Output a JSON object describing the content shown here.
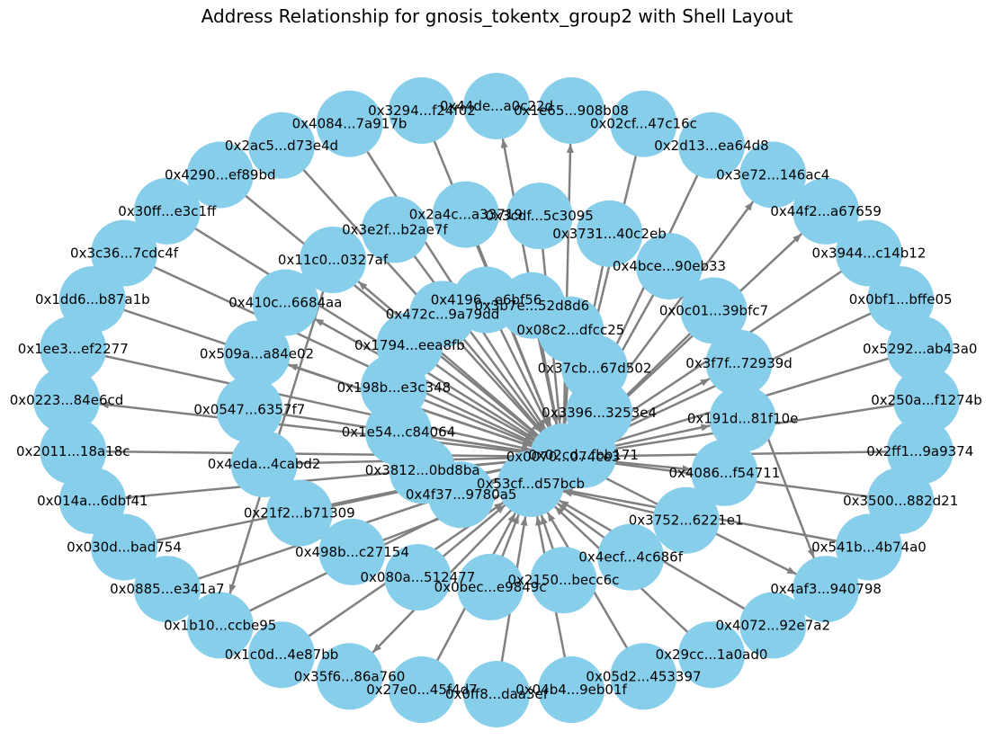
{
  "title": "Address Relationship for gnosis_tokentx_group2 with Shell Layout",
  "colors": {
    "node": "#87ceeb",
    "edge": "#808080",
    "label": "#000000",
    "background": "#ffffff"
  },
  "nodes": {
    "outer": [
      "0x44de...a0c22d",
      "0x1e65...908b08",
      "0x02cf...47c16c",
      "0x2d13...ea64d8",
      "0x3e72...146ac4",
      "0x44f2...a67659",
      "0x3944...c14b12",
      "0x0bf1...bffe05",
      "0x5292...ab43a0",
      "0x250a...f1274b",
      "0x2ff1...9a9374",
      "0x3500...882d21",
      "0x541b...4b74a0",
      "0x4af3...940798",
      "0x4072...92e7a2",
      "0x29cc...1a0ad0",
      "0x05d2...453397",
      "0x04b4...9eb01f",
      "0x0ff8...daa3ef",
      "0x27e0...45f4d7",
      "0x35f6...86a760",
      "0x1c0d...4e87bb",
      "0x1b10...ccbe95",
      "0x0885...e341a7",
      "0x030d...bad754",
      "0x014a...6dbf41",
      "0x2011...18a18c",
      "0x0223...84e6cd",
      "0x1ee3...ef2277",
      "0x1dd6...b87a1b",
      "0x3c36...7cdc4f",
      "0x30ff...e3c1ff",
      "0x4290...ef89bd",
      "0x2ac5...d73e4d",
      "0x4084...7a917b",
      "0x3294...f24f02"
    ],
    "middle": [
      "0x3cdf...5c3095",
      "0x3731...40c2eb",
      "0x4bce...90eb33",
      "0x0c01...39bfc7",
      "0x3f7f...72939d",
      "0x191d...81f10e",
      "0x4086...f54711",
      "0x3752...6221e1",
      "0x4ecf...4c686f",
      "0x2150...becc6c",
      "0x0bec...e9849c",
      "0x080a...512477",
      "0x498b...c27154",
      "0x21f2...b71309",
      "0x4eda...4cabd2",
      "0x0547...6357f7",
      "0x509a...a84e02",
      "0x410c...6684aa",
      "0x11c0...0327af",
      "0x3e2f...b2ae7f",
      "0x2a4c...a33719"
    ],
    "inner": [
      "0x3b7e...52d8d6",
      "0x08c2...dfcc25",
      "0x37cb...67d502",
      "0x3396...3253e4",
      "0x02cd...fbb171",
      "0x0070...074ce3",
      "0x53cf...d57bcb",
      "0x4f37...9780a5",
      "0x3812...0bd8ba",
      "0x1e54...c84064",
      "0x198b...e3c348",
      "0x1794...eea8fb",
      "0x472c...9a79dd",
      "0x4196...e6bf56"
    ]
  },
  "edges": [
    [
      "0x0070...074ce3",
      "0x53cf...d57bcb"
    ],
    [
      "0x53cf...d57bcb",
      "0x0070...074ce3"
    ],
    [
      "0x3294...f24f02",
      "0x0070...074ce3"
    ],
    [
      "0x4084...7a917b",
      "0x0070...074ce3"
    ],
    [
      "0x2ac5...d73e4d",
      "0x0070...074ce3"
    ],
    [
      "0x4290...ef89bd",
      "0x0070...074ce3"
    ],
    [
      "0x30ff...e3c1ff",
      "0x0070...074ce3"
    ],
    [
      "0x3c36...7cdc4f",
      "0x0070...074ce3"
    ],
    [
      "0x1dd6...b87a1b",
      "0x0070...074ce3"
    ],
    [
      "0x1ee3...ef2277",
      "0x0070...074ce3"
    ],
    [
      "0x2011...18a18c",
      "0x0070...074ce3"
    ],
    [
      "0x014a...6dbf41",
      "0x0070...074ce3"
    ],
    [
      "0x030d...bad754",
      "0x0070...074ce3"
    ],
    [
      "0x0885...e341a7",
      "0x0070...074ce3"
    ],
    [
      "0x1b10...ccbe95",
      "0x0070...074ce3"
    ],
    [
      "0x1c0d...4e87bb",
      "0x53cf...d57bcb"
    ],
    [
      "0x27e0...45f4d7",
      "0x53cf...d57bcb"
    ],
    [
      "0x0ff8...daa3ef",
      "0x53cf...d57bcb"
    ],
    [
      "0x04b4...9eb01f",
      "0x53cf...d57bcb"
    ],
    [
      "0x05d2...453397",
      "0x53cf...d57bcb"
    ],
    [
      "0x29cc...1a0ad0",
      "0x53cf...d57bcb"
    ],
    [
      "0x4072...92e7a2",
      "0x53cf...d57bcb"
    ],
    [
      "0x541b...4b74a0",
      "0x53cf...d57bcb"
    ],
    [
      "0x3500...882d21",
      "0x0070...074ce3"
    ],
    [
      "0x2ff1...9a9374",
      "0x0070...074ce3"
    ],
    [
      "0x250a...f1274b",
      "0x0070...074ce3"
    ],
    [
      "0x5292...ab43a0",
      "0x0070...074ce3"
    ],
    [
      "0x0bf1...bffe05",
      "0x0070...074ce3"
    ],
    [
      "0x3944...c14b12",
      "0x0070...074ce3"
    ],
    [
      "0x02cf...47c16c",
      "0x0070...074ce3"
    ],
    [
      "0x2d13...ea64d8",
      "0x0070...074ce3"
    ],
    [
      "0x0070...074ce3",
      "0x0223...84e6cd"
    ],
    [
      "0x0070...074ce3",
      "0x1e65...908b08"
    ],
    [
      "0x0070...074ce3",
      "0x3e72...146ac4"
    ],
    [
      "0x0070...074ce3",
      "0x44f2...a67659"
    ],
    [
      "0x0070...074ce3",
      "0x35f6...86a760"
    ],
    [
      "0x0070...074ce3",
      "0x4af3...940798"
    ],
    [
      "0x3cdf...5c3095",
      "0x0070...074ce3"
    ],
    [
      "0x3731...40c2eb",
      "0x0070...074ce3"
    ],
    [
      "0x4bce...90eb33",
      "0x0070...074ce3"
    ],
    [
      "0x0c01...39bfc7",
      "0x0070...074ce3"
    ],
    [
      "0x2a4c...a33719",
      "0x0070...074ce3"
    ],
    [
      "0x3e2f...b2ae7f",
      "0x0070...074ce3"
    ],
    [
      "0x4ecf...4c686f",
      "0x53cf...d57bcb"
    ],
    [
      "0x2150...becc6c",
      "0x53cf...d57bcb"
    ],
    [
      "0x0bec...e9849c",
      "0x53cf...d57bcb"
    ],
    [
      "0x080a...512477",
      "0x53cf...d57bcb"
    ],
    [
      "0x498b...c27154",
      "0x53cf...d57bcb"
    ],
    [
      "0x21f2...b71309",
      "0x0070...074ce3"
    ],
    [
      "0x4eda...4cabd2",
      "0x0070...074ce3"
    ],
    [
      "0x0547...6357f7",
      "0x0070...074ce3"
    ],
    [
      "0x3752...6221e1",
      "0x53cf...d57bcb"
    ],
    [
      "0x0070...074ce3",
      "0x410c...6684aa"
    ],
    [
      "0x0070...074ce3",
      "0x509a...a84e02"
    ],
    [
      "0x0070...074ce3",
      "0x11c0...0327af"
    ],
    [
      "0x0070...074ce3",
      "0x3f7f...72939d"
    ],
    [
      "0x0070...074ce3",
      "0x02cd...fbb171"
    ],
    [
      "0x0070...074ce3",
      "0x191d...81f10e"
    ],
    [
      "0x0070...074ce3",
      "0x4086...f54711"
    ],
    [
      "0x11c0...0327af",
      "0x1b10...ccbe95"
    ],
    [
      "0x4196...e6bf56",
      "0x0070...074ce3"
    ],
    [
      "0x3b7e...52d8d6",
      "0x0070...074ce3"
    ],
    [
      "0x08c2...dfcc25",
      "0x0070...074ce3"
    ],
    [
      "0x37cb...67d502",
      "0x0070...074ce3"
    ],
    [
      "0x3396...3253e4",
      "0x0070...074ce3"
    ],
    [
      "0x472c...9a79dd",
      "0x0070...074ce3"
    ],
    [
      "0x1794...eea8fb",
      "0x0070...074ce3"
    ],
    [
      "0x198b...e3c348",
      "0x0070...074ce3"
    ],
    [
      "0x1e54...c84064",
      "0x0070...074ce3"
    ],
    [
      "0x3812...0bd8ba",
      "0x0070...074ce3"
    ],
    [
      "0x4f37...9780a5",
      "0x0070...074ce3"
    ],
    [
      "0x0070...074ce3",
      "0x44de...a0c22d"
    ],
    [
      "0x3f7f...72939d",
      "0x4af3...940798"
    ]
  ]
}
